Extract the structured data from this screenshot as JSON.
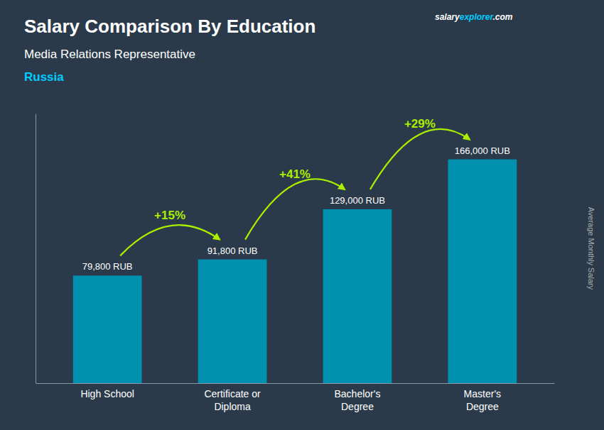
{
  "chart_data": {
    "type": "bar",
    "title": "Salary Comparison By Education",
    "subtitle": "Media Relations Representative",
    "ylabel": "Average Monthly Salary",
    "annotations": [
      {
        "text": "Russia",
        "color": "#00ccff"
      },
      {
        "text": "salary",
        "color": "#ffffff"
      },
      {
        "text": "explorer",
        "color": "#00ccff"
      },
      {
        "text": ".com",
        "color": "#ffffff"
      },
      {
        "text": "+15%",
        "color": "#aaee00"
      },
      {
        "text": "+41%",
        "color": "#aaee00"
      },
      {
        "text": "+29%",
        "color": "#aaee00"
      }
    ],
    "categories": [
      "High School",
      "Certificate or\nDiploma",
      "Bachelor's\nDegree",
      "Master's\nDegree"
    ],
    "values": [
      79800,
      91800,
      129000,
      166000
    ],
    "value_labels": [
      "79,800 RUB",
      "91,800 RUB",
      "129,000 RUB",
      "166,000 RUB"
    ],
    "data_labels": true,
    "color": "#0090b0",
    "ylim": [
      0,
      200000
    ],
    "tick_labels": "x",
    "grid": false
  }
}
